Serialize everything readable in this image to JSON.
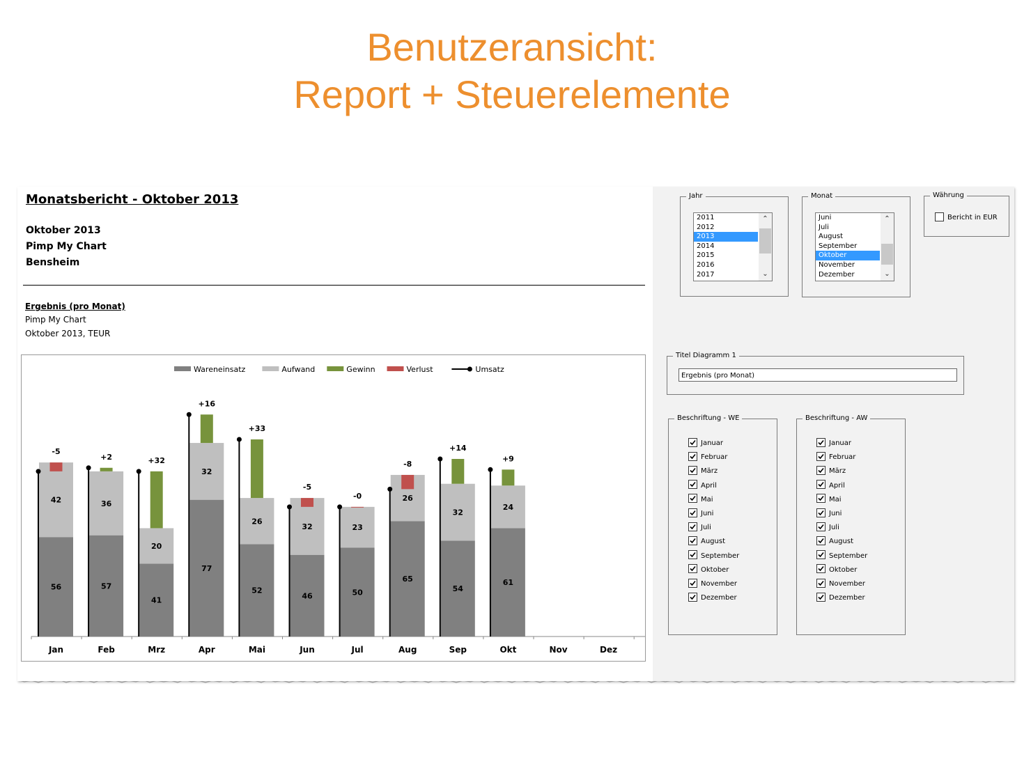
{
  "slide": {
    "title_line1": "Benutzeransicht:",
    "title_line2": "Report + Steuerelemente",
    "title_color": "#ED8F2E"
  },
  "report": {
    "title": "Monatsbericht - Oktober 2013",
    "line1": "Oktober 2013",
    "line2": "Pimp My Chart",
    "line3": "Bensheim",
    "chart_title": "Ergebnis (pro Monat)",
    "chart_subtitle1": "Pimp My Chart",
    "chart_subtitle2": "Oktober 2013, TEUR"
  },
  "chart_data": {
    "type": "bar",
    "stacked": true,
    "categories": [
      "Jan",
      "Feb",
      "Mrz",
      "Apr",
      "Mai",
      "Jun",
      "Jul",
      "Aug",
      "Sep",
      "Okt",
      "Nov",
      "Dez"
    ],
    "series": [
      {
        "name": "Wareneinsatz",
        "color": "#808080",
        "values": [
          56,
          57,
          41,
          77,
          52,
          46,
          50,
          65,
          54,
          61,
          null,
          null
        ]
      },
      {
        "name": "Aufwand",
        "color": "#bfbfbf",
        "values": [
          42,
          36,
          20,
          32,
          26,
          32,
          23,
          26,
          32,
          24,
          null,
          null
        ]
      },
      {
        "name": "Gewinn",
        "color": "#77933c",
        "values": [
          0,
          2,
          32,
          16,
          33,
          0,
          0,
          0,
          14,
          9,
          null,
          null
        ]
      },
      {
        "name": "Verlust",
        "color": "#c0504d",
        "values": [
          5,
          0,
          0,
          0,
          0,
          5,
          0.4,
          8,
          0,
          0,
          null,
          null
        ]
      },
      {
        "name": "Umsatz",
        "type": "line",
        "color": "#000000",
        "values": [
          93,
          95,
          93,
          125,
          111,
          73,
          73,
          83,
          100,
          94,
          null,
          null
        ]
      }
    ],
    "result_labels": [
      "-5",
      "+2",
      "+32",
      "+16",
      "+33",
      "-5",
      "-0",
      "-8",
      "+14",
      "+9",
      "",
      ""
    ],
    "legend_position": "top",
    "ylim": [
      0,
      130
    ],
    "grid": false
  },
  "controls": {
    "jahr": {
      "label": "Jahr",
      "items": [
        "2011",
        "2012",
        "2013",
        "2014",
        "2015",
        "2016",
        "2017"
      ],
      "selected": "2013"
    },
    "monat": {
      "label": "Monat",
      "items": [
        "Juni",
        "Juli",
        "August",
        "September",
        "Oktober",
        "November",
        "Dezember"
      ],
      "selected": "Oktober"
    },
    "waehrung": {
      "label": "Währung",
      "checkbox_label": "Bericht in EUR",
      "checked": false
    },
    "titel": {
      "label": "Titel Diagramm 1",
      "value": "Ergebnis (pro Monat)"
    },
    "beschriftung_we": {
      "label": "Beschriftung - WE",
      "items": [
        "Januar",
        "Februar",
        "März",
        "April",
        "Mai",
        "Juni",
        "Juli",
        "August",
        "September",
        "Oktober",
        "November",
        "Dezember"
      ],
      "checked": true
    },
    "beschriftung_aw": {
      "label": "Beschriftung - AW",
      "items": [
        "Januar",
        "Februar",
        "März",
        "April",
        "Mai",
        "Juni",
        "Juli",
        "August",
        "September",
        "Oktober",
        "November",
        "Dezember"
      ],
      "checked": true
    }
  }
}
